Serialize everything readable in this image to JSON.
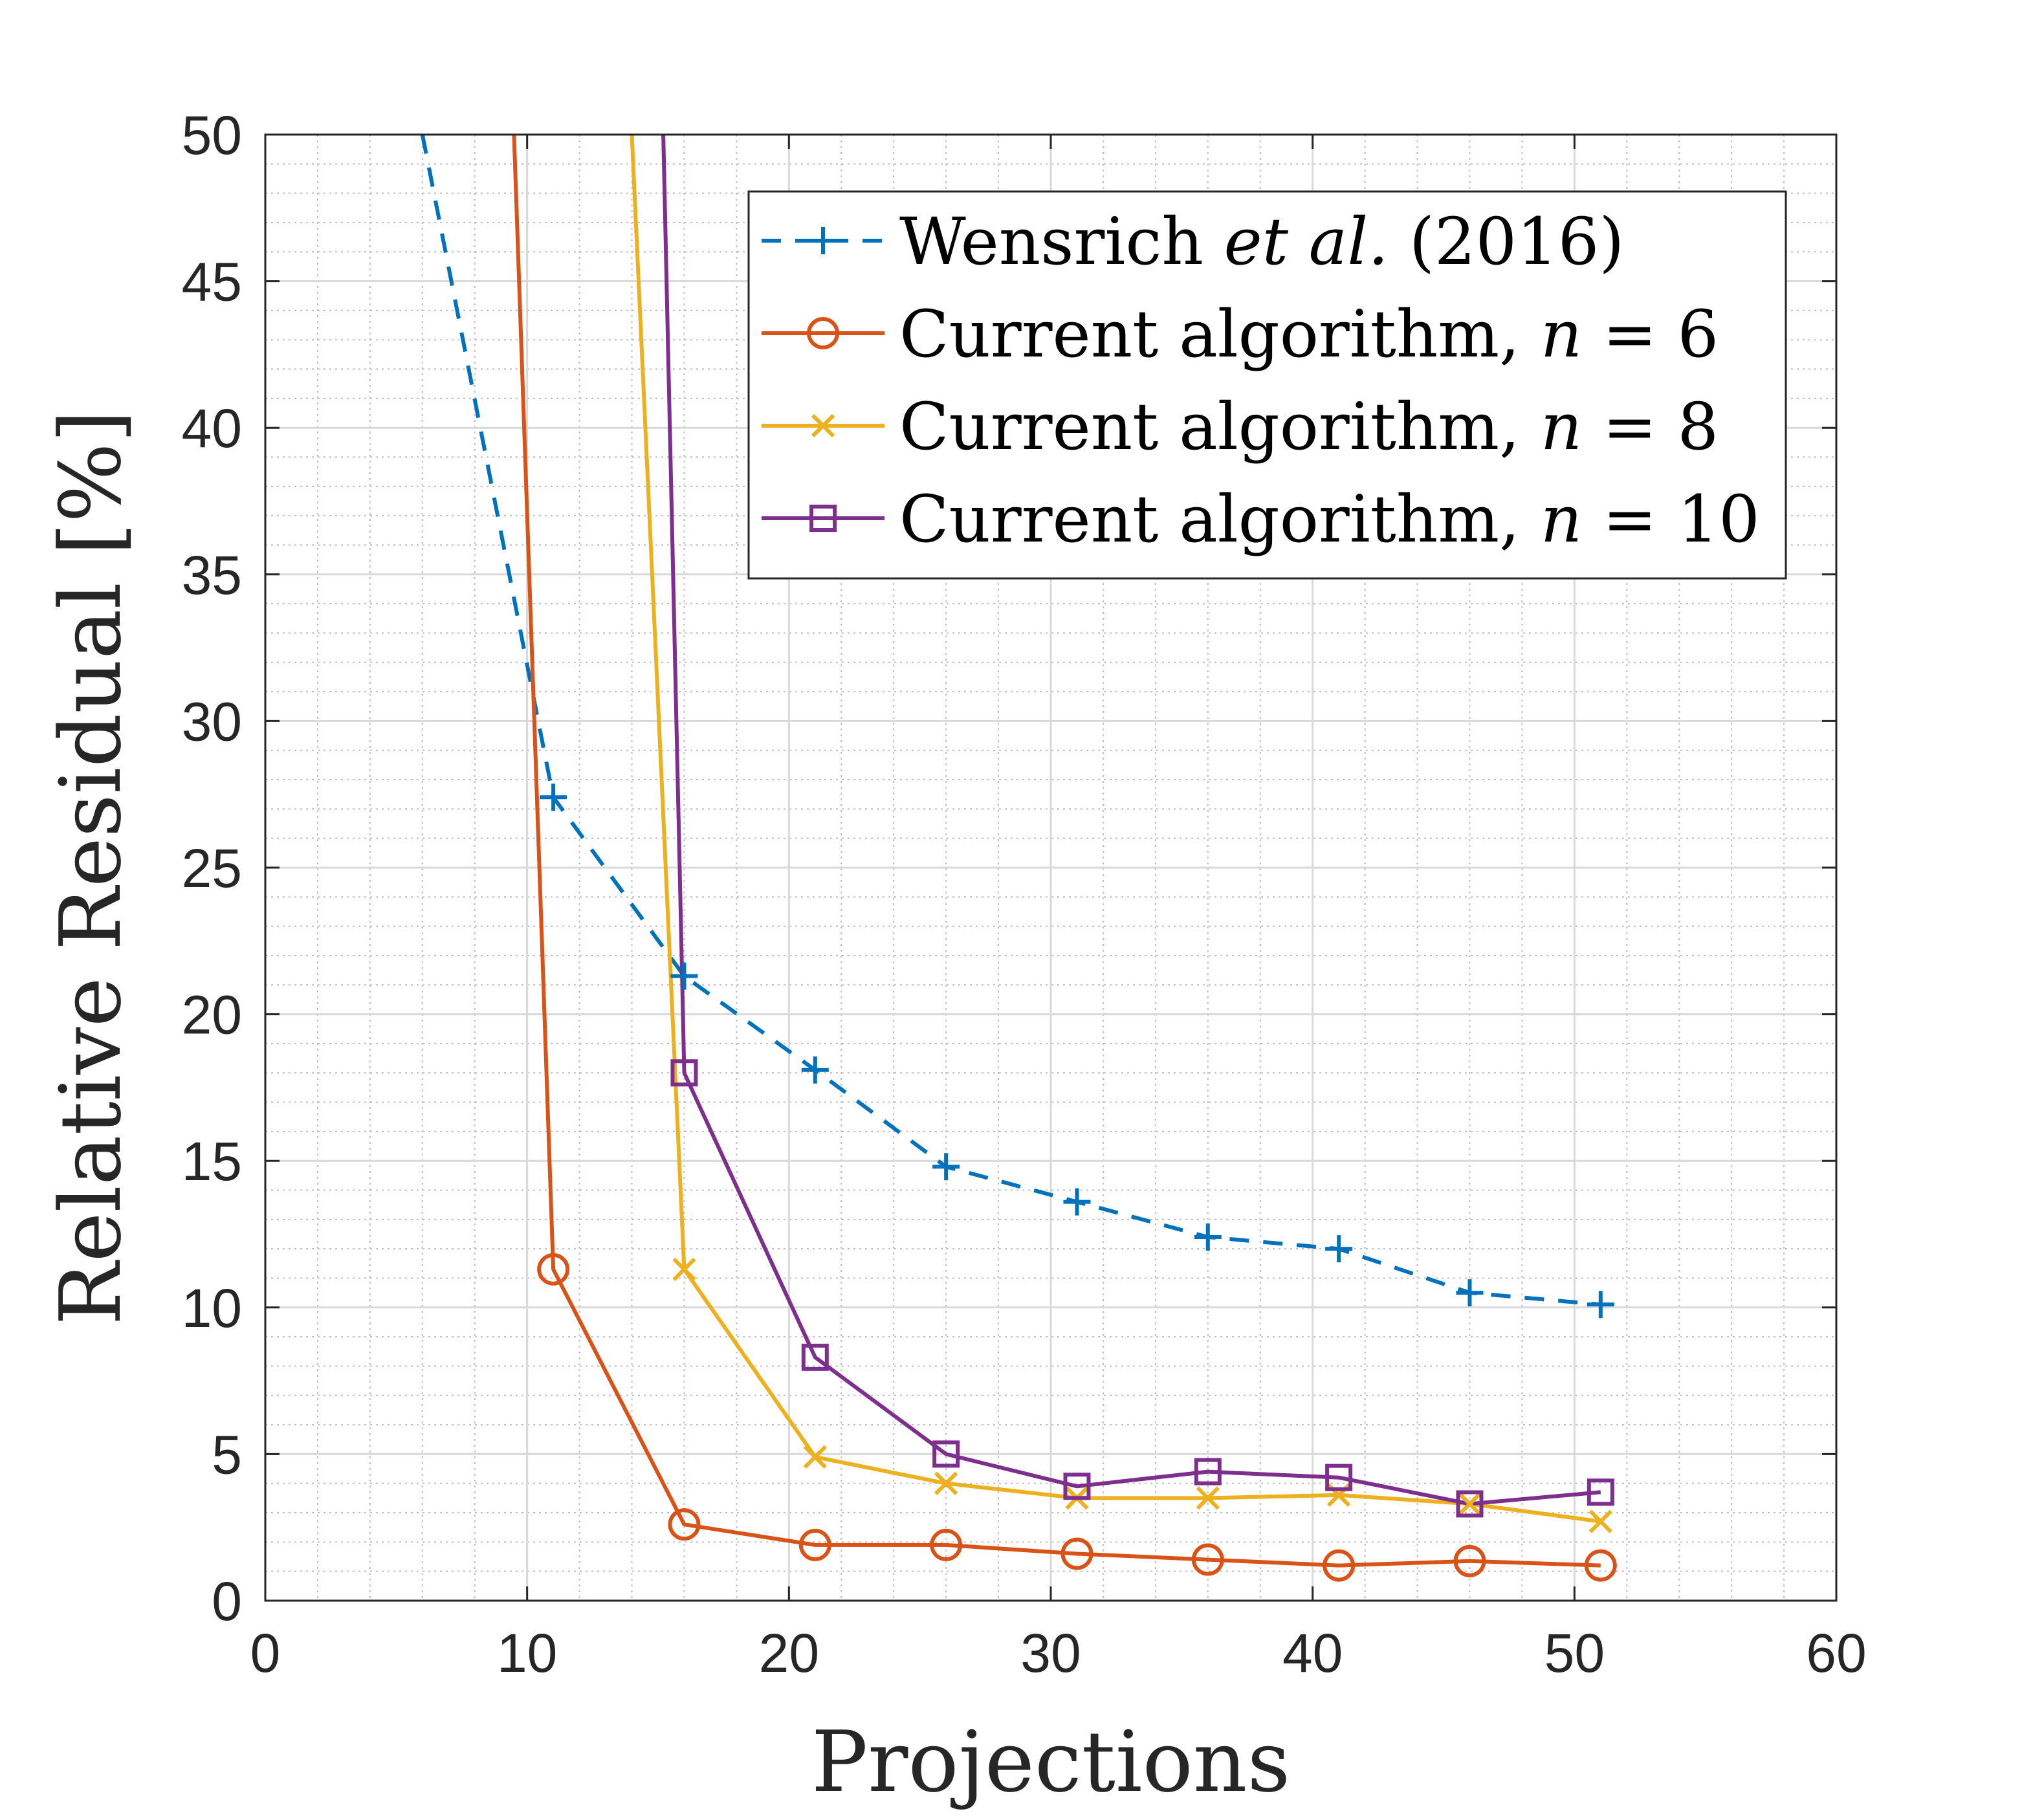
{
  "chart_data": {
    "type": "line",
    "xlabel": "Projections",
    "ylabel": "Relative Residual [%]",
    "xlim": [
      0,
      60
    ],
    "ylim": [
      0,
      50
    ],
    "xticks": [
      0,
      10,
      20,
      30,
      40,
      50,
      60
    ],
    "yticks": [
      0,
      5,
      10,
      15,
      20,
      25,
      30,
      35,
      40,
      45,
      50
    ],
    "grid": "major and minor",
    "legend_position": "top-right",
    "series": [
      {
        "name": "Wensrich et al. (2016)",
        "legend": {
          "pre": "Wensrich ",
          "italic": "et al.",
          "post": " (2016)"
        },
        "color": "#0072BD",
        "line_style": "dashed",
        "marker": "plus",
        "x": [
          6,
          11,
          16,
          21,
          26,
          31,
          36,
          41,
          46,
          51
        ],
        "y": [
          50,
          27.4,
          21.3,
          18.1,
          14.8,
          13.6,
          12.4,
          12.0,
          10.5,
          10.1
        ],
        "marker_x": [
          11,
          16,
          21,
          26,
          31,
          36,
          41,
          46,
          51
        ],
        "marker_y": [
          27.4,
          21.3,
          18.1,
          14.8,
          13.6,
          12.4,
          12.0,
          10.5,
          10.1
        ]
      },
      {
        "name": "Current algorithm, n = 6",
        "legend": {
          "pre": "Current algorithm, ",
          "italic": "n",
          "post": " = 6"
        },
        "color": "#D95319",
        "line_style": "solid",
        "marker": "circle",
        "x": [
          9.5,
          11,
          16,
          21,
          26,
          31,
          36,
          41,
          46,
          51
        ],
        "y": [
          50,
          11.3,
          2.6,
          1.9,
          1.9,
          1.6,
          1.4,
          1.2,
          1.35,
          1.2
        ],
        "marker_x": [
          11,
          16,
          21,
          26,
          31,
          36,
          41,
          46,
          51
        ],
        "marker_y": [
          11.3,
          2.6,
          1.9,
          1.9,
          1.6,
          1.4,
          1.2,
          1.35,
          1.2
        ]
      },
      {
        "name": "Current algorithm, n = 8",
        "legend": {
          "pre": "Current algorithm, ",
          "italic": "n",
          "post": " = 8"
        },
        "color": "#EDB120",
        "line_style": "solid",
        "marker": "x",
        "x": [
          14,
          16,
          21,
          26,
          31,
          36,
          41,
          46,
          51
        ],
        "y": [
          50,
          11.3,
          4.9,
          4.0,
          3.5,
          3.5,
          3.6,
          3.3,
          2.7
        ],
        "marker_x": [
          16,
          21,
          26,
          31,
          36,
          41,
          46,
          51
        ],
        "marker_y": [
          11.3,
          4.9,
          4.0,
          3.5,
          3.5,
          3.6,
          3.3,
          2.7
        ]
      },
      {
        "name": "Current algorithm, n = 10",
        "legend": {
          "pre": "Current algorithm, ",
          "italic": "n",
          "post": " = 10"
        },
        "color": "#7E2F8E",
        "line_style": "solid",
        "marker": "square",
        "x": [
          15.2,
          16,
          21,
          26,
          31,
          36,
          41,
          46,
          51
        ],
        "y": [
          50,
          18.0,
          8.3,
          5.0,
          3.9,
          4.4,
          4.2,
          3.3,
          3.7
        ],
        "marker_x": [
          16,
          21,
          26,
          31,
          36,
          41,
          46,
          51
        ],
        "marker_y": [
          18.0,
          8.3,
          5.0,
          3.9,
          4.4,
          4.2,
          3.3,
          3.7
        ]
      }
    ]
  }
}
